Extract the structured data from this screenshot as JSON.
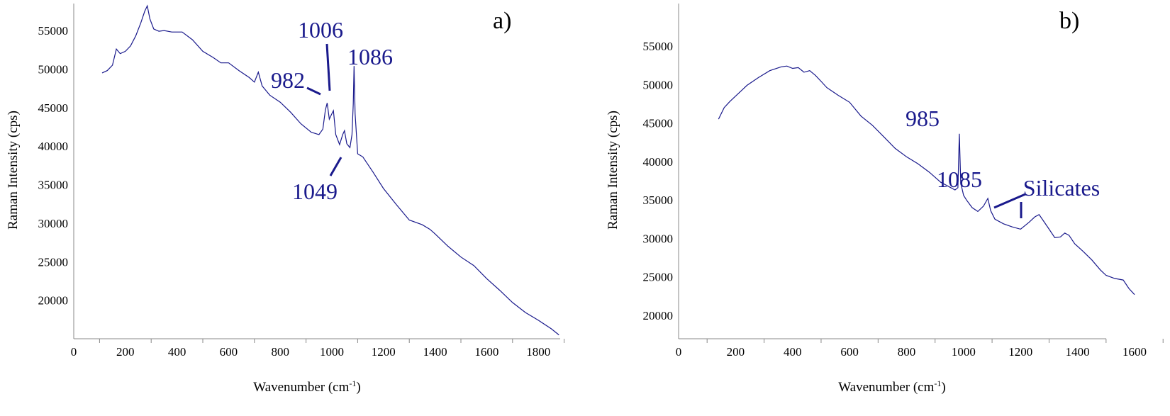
{
  "chart_data": [
    {
      "type": "line",
      "panel_label": "a)",
      "xlabel": "Wavenumber (cm",
      "xlabel_sup": "-1",
      "xlabel_close": ")",
      "ylabel": "Raman Intensity (cps)",
      "xlim": [
        0,
        1900
      ],
      "ylim": [
        15000,
        58500
      ],
      "xticks": [
        0,
        200,
        400,
        600,
        800,
        1000,
        1200,
        1400,
        1600,
        1800
      ],
      "yticks": [
        20000,
        25000,
        30000,
        35000,
        40000,
        45000,
        50000,
        55000
      ],
      "color": "#1a1a8c",
      "series": [
        {
          "x": [
            110,
            130,
            150,
            165,
            180,
            200,
            220,
            240,
            260,
            275,
            285,
            295,
            310,
            330,
            350,
            380,
            420,
            460,
            500,
            540,
            570,
            600,
            640,
            680,
            700,
            715,
            730,
            760,
            800,
            840,
            880,
            920,
            950,
            965,
            975,
            982,
            990,
            1000,
            1006,
            1015,
            1030,
            1042,
            1049,
            1058,
            1070,
            1078,
            1083,
            1086,
            1090,
            1100,
            1120,
            1140,
            1160,
            1200,
            1250,
            1300,
            1350,
            1380,
            1400,
            1450,
            1500,
            1550,
            1600,
            1650,
            1700,
            1750,
            1800,
            1850,
            1880
          ],
          "y": [
            49500,
            49800,
            50500,
            52600,
            52000,
            52300,
            53000,
            54300,
            56000,
            57500,
            58200,
            56500,
            55200,
            54900,
            55000,
            54800,
            54800,
            53800,
            52300,
            51500,
            50800,
            50800,
            49800,
            48900,
            48300,
            49600,
            47800,
            46600,
            45700,
            44400,
            42900,
            41800,
            41500,
            42200,
            44700,
            45600,
            43500,
            44200,
            44600,
            41500,
            40200,
            41500,
            42000,
            40300,
            39800,
            41500,
            45500,
            50400,
            44200,
            39000,
            38600,
            37600,
            36600,
            34500,
            32400,
            30400,
            29800,
            29200,
            28600,
            27000,
            25600,
            24500,
            22800,
            21300,
            19700,
            18400,
            17400,
            16300,
            15500
          ]
        }
      ],
      "annotations": [
        {
          "text": "982",
          "x": 982,
          "y": 45600
        },
        {
          "text": "1006",
          "x": 1006,
          "y": 44600
        },
        {
          "text": "1086",
          "x": 1086,
          "y": 50400
        },
        {
          "text": "1049",
          "x": 1049,
          "y": 41200
        }
      ]
    },
    {
      "type": "line",
      "panel_label": "b)",
      "xlabel": "Wavenumber (cm",
      "xlabel_sup": "-1",
      "xlabel_close": ")",
      "ylabel": "Raman Intensity (cps)",
      "xlim": [
        0,
        1750
      ],
      "ylim": [
        17000,
        59000
      ],
      "xticks": [
        0,
        200,
        400,
        600,
        800,
        1000,
        1200,
        1400,
        1600
      ],
      "yticks": [
        20000,
        25000,
        30000,
        35000,
        40000,
        45000,
        50000,
        55000
      ],
      "color": "#1a1a8c",
      "series": [
        {
          "x": [
            140,
            160,
            180,
            200,
            240,
            280,
            320,
            360,
            380,
            400,
            420,
            440,
            460,
            480,
            500,
            520,
            560,
            600,
            640,
            680,
            720,
            760,
            800,
            840,
            880,
            920,
            950,
            970,
            980,
            985,
            990,
            1000,
            1010,
            1030,
            1050,
            1070,
            1085,
            1095,
            1110,
            1140,
            1170,
            1200,
            1230,
            1250,
            1265,
            1280,
            1300,
            1320,
            1340,
            1355,
            1370,
            1390,
            1420,
            1450,
            1480,
            1500,
            1530,
            1560,
            1580,
            1600
          ],
          "y": [
            45500,
            47000,
            47800,
            48500,
            49900,
            50900,
            51800,
            52300,
            52400,
            52100,
            52200,
            51600,
            51800,
            51200,
            50400,
            49600,
            48600,
            47700,
            45900,
            44700,
            43200,
            41700,
            40600,
            39700,
            38600,
            37300,
            36700,
            36300,
            36600,
            43600,
            37200,
            35600,
            35000,
            34000,
            33500,
            34200,
            35200,
            33600,
            32500,
            31900,
            31500,
            31200,
            32100,
            32800,
            33100,
            32300,
            31200,
            30100,
            30200,
            30700,
            30400,
            29300,
            28300,
            27200,
            25900,
            25200,
            24800,
            24600,
            23500,
            22700
          ]
        }
      ],
      "annotations": [
        {
          "text": "985",
          "x": 985,
          "y": 43600
        },
        {
          "text": "1085",
          "x": 1085,
          "y": 35200
        },
        {
          "text": "Silicates",
          "x": 1390,
          "y": 35000
        }
      ]
    }
  ]
}
